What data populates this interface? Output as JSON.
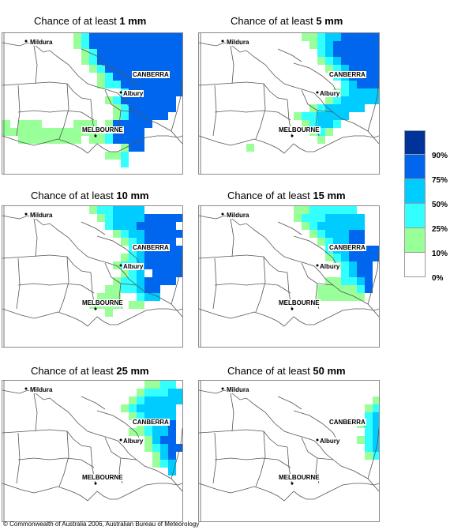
{
  "panels": [
    {
      "title_prefix": "Chance of at least ",
      "threshold": "1 mm"
    },
    {
      "title_prefix": "Chance of at least ",
      "threshold": "5 mm"
    },
    {
      "title_prefix": "Chance of at least ",
      "threshold": "10 mm"
    },
    {
      "title_prefix": "Chance of at least ",
      "threshold": "15 mm"
    },
    {
      "title_prefix": "Chance of at least ",
      "threshold": "25 mm"
    },
    {
      "title_prefix": "Chance of at least ",
      "threshold": "50 mm"
    }
  ],
  "places": {
    "mildura": "Mildura",
    "canberra": "CANBERRA",
    "albury": "Albury",
    "melbourne": "MELBOURNE"
  },
  "legend": {
    "classes": [
      {
        "label": "90%",
        "color": "#003399"
      },
      {
        "label": "75%",
        "color": "#0066ee"
      },
      {
        "label": "50%",
        "color": "#00ccff"
      },
      {
        "label": "25%",
        "color": "#33ffff"
      },
      {
        "label": "10%",
        "color": "#99ff99"
      },
      {
        "label": "0%",
        "color": "#ffffff"
      }
    ]
  },
  "copyright": "© Commonwealth of Australia 2006, Australian Bureau of Meteorology"
}
